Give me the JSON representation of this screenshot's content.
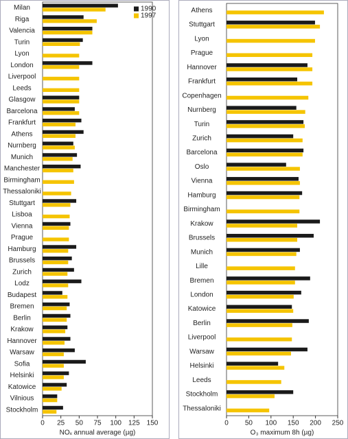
{
  "chart_data": [
    {
      "type": "hbar",
      "xlabel": "NOₓ annual average (µg)",
      "categories": [
        "Milan",
        "Riga",
        "Valencia",
        "Turin",
        "Lyon",
        "London",
        "Liverpool",
        "Leeds",
        "Glasgow",
        "Barcelona",
        "Frankfurt",
        "Athens",
        "Nurnberg",
        "Munich",
        "Manchester",
        "Birmingham",
        "Thessaloniki",
        "Stuttgart",
        "Lisboa",
        "Vienna",
        "Prague",
        "Hamburg",
        "Brussels",
        "Zurich",
        "Lodz",
        "Budapest",
        "Bremen",
        "Berlin",
        "Krakow",
        "Hannover",
        "Warsaw",
        "Sofia",
        "Helsinki",
        "Katowice",
        "Vilnious",
        "Stockholm"
      ],
      "series": [
        {
          "name": "1990",
          "color": "#1a1a1a",
          "values": [
            103,
            56,
            68,
            55,
            null,
            68,
            null,
            null,
            50,
            44,
            53,
            56,
            42,
            47,
            52,
            null,
            null,
            46,
            null,
            38,
            null,
            46,
            40,
            43,
            53,
            27,
            37,
            38,
            34,
            38,
            44,
            59,
            36,
            33,
            20,
            28
          ]
        },
        {
          "name": "1997",
          "color": "#f5c400",
          "values": [
            86,
            74,
            68,
            51,
            50,
            50,
            50,
            50,
            50,
            50,
            45,
            45,
            44,
            41,
            42,
            43,
            39,
            38,
            37,
            36,
            36,
            35,
            35,
            34,
            35,
            34,
            33,
            33,
            31,
            30,
            29,
            29,
            29,
            26,
            20,
            19
          ]
        }
      ],
      "xlim": [
        0,
        150
      ],
      "xticks": [
        0,
        25,
        50,
        75,
        100,
        125,
        150
      ],
      "legend": "upper right"
    },
    {
      "type": "hbar",
      "xlabel": "O₃ maximum 8h (µg)",
      "categories": [
        "Athens",
        "Stuttgart",
        "Lyon",
        "Prague",
        "Hannover",
        "Frankfurt",
        "Copenhagen",
        "Nurnberg",
        "Turin",
        "Zurich",
        "Barcelona",
        "Oslo",
        "Vienna",
        "Hamburg",
        "Birmingham",
        "Krakow",
        "Brussels",
        "Munich",
        "Lille",
        "Bremen",
        "London",
        "Katowice",
        "Berlin",
        "Liverpool",
        "Warsaw",
        "Helsinki",
        "Leeds",
        "Stockholm",
        "Thessaloniki"
      ],
      "series": [
        {
          "color": "#1a1a1a",
          "values": [
            null,
            199,
            null,
            null,
            182,
            159,
            null,
            157,
            173,
            150,
            173,
            134,
            162,
            170,
            null,
            210,
            196,
            165,
            null,
            188,
            168,
            147,
            185,
            null,
            182,
            116,
            null,
            150,
            null
          ]
        },
        {
          "color": "#f5c400",
          "values": [
            219,
            210,
            199,
            193,
            193,
            193,
            184,
            177,
            176,
            171,
            171,
            165,
            165,
            164,
            164,
            159,
            159,
            157,
            154,
            154,
            151,
            150,
            148,
            147,
            145,
            130,
            123,
            108,
            96
          ]
        }
      ],
      "xlim": [
        0,
        250
      ],
      "xticks": [
        0,
        50,
        100,
        150,
        200,
        250
      ]
    }
  ]
}
